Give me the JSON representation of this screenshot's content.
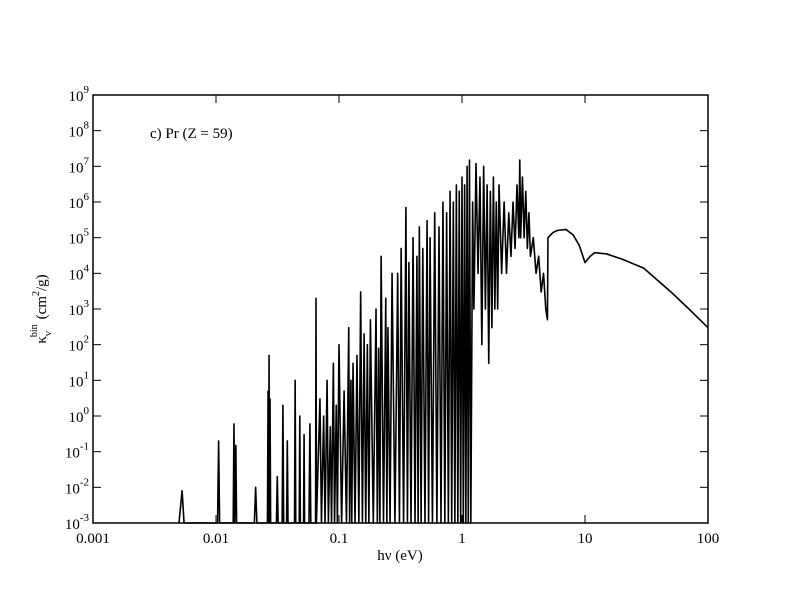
{
  "chart_data": {
    "type": "line",
    "annotation": "c) Pr (Z = 59)",
    "x_label": "hν (eV)",
    "y_label": {
      "symbol": "κ",
      "subscript": "ν",
      "superscript": "bin",
      "unit_start": "(cm",
      "unit_power": "2",
      "unit_end": "/g)"
    },
    "log_x": true,
    "log_y": true,
    "grid": false,
    "xlim": [
      0.001,
      100
    ],
    "xticks": [
      0.001,
      0.01,
      0.1,
      1,
      10,
      100
    ],
    "ylim": [
      0.001,
      1000000000
    ],
    "yticks": [
      {
        "value": 0.001,
        "label": "10",
        "exponent": "-3"
      },
      {
        "value": 0.01,
        "label": "10",
        "exponent": "-2"
      },
      {
        "value": 0.1,
        "label": "10",
        "exponent": "-1"
      },
      {
        "value": 1,
        "label": "10",
        "exponent": "0"
      },
      {
        "value": 10,
        "label": "10",
        "exponent": "1"
      },
      {
        "value": 100,
        "label": "10",
        "exponent": "2"
      },
      {
        "value": 1000,
        "label": "10",
        "exponent": "3"
      },
      {
        "value": 10000,
        "label": "10",
        "exponent": "4"
      },
      {
        "value": 100000,
        "label": "10",
        "exponent": "5"
      },
      {
        "value": 1000000,
        "label": "10",
        "exponent": "6"
      },
      {
        "value": 10000000,
        "label": "10",
        "exponent": "7"
      },
      {
        "value": 100000000,
        "label": "10",
        "exponent": "8"
      },
      {
        "value": 1000000000,
        "label": "10",
        "exponent": "9"
      }
    ],
    "series": [
      {
        "color": "#000000",
        "x": [
          0.005,
          0.0053,
          0.0055,
          0.0103,
          0.0105,
          0.0107,
          0.0138,
          0.014,
          0.0142,
          0.0145,
          0.0147,
          0.0205,
          0.021,
          0.0215,
          0.0262,
          0.0265,
          0.0268,
          0.027,
          0.0272,
          0.0275,
          0.0278,
          0.031,
          0.0315,
          0.032,
          0.0345,
          0.035,
          0.0355,
          0.0375,
          0.038,
          0.0385,
          0.0435,
          0.044,
          0.0445,
          0.0475,
          0.048,
          0.0485,
          0.0515,
          0.052,
          0.0525,
          0.057,
          0.058,
          0.059,
          0.0645,
          0.065,
          0.0655,
          0.07,
          0.072,
          0.075,
          0.077,
          0.08,
          0.082,
          0.085,
          0.087,
          0.09,
          0.092,
          0.095,
          0.097,
          0.1,
          0.105,
          0.11,
          0.115,
          0.12,
          0.122,
          0.125,
          0.127,
          0.13,
          0.135,
          0.14,
          0.145,
          0.15,
          0.155,
          0.16,
          0.165,
          0.17,
          0.175,
          0.18,
          0.19,
          0.2,
          0.205,
          0.21,
          0.215,
          0.22,
          0.23,
          0.24,
          0.245,
          0.25,
          0.26,
          0.27,
          0.285,
          0.3,
          0.31,
          0.32,
          0.335,
          0.35,
          0.36,
          0.37,
          0.385,
          0.4,
          0.415,
          0.43,
          0.44,
          0.45,
          0.465,
          0.48,
          0.5,
          0.52,
          0.535,
          0.55,
          0.575,
          0.6,
          0.625,
          0.65,
          0.675,
          0.7,
          0.725,
          0.75,
          0.775,
          0.8,
          0.825,
          0.85,
          0.875,
          0.9,
          0.925,
          0.95,
          0.975,
          1.0,
          1.025,
          1.05,
          1.075,
          1.1,
          1.125,
          1.15,
          1.18,
          1.22,
          1.25,
          1.3,
          1.35,
          1.4,
          1.45,
          1.5,
          1.55,
          1.6,
          1.65,
          1.7,
          1.75,
          1.8,
          1.85,
          1.9,
          1.95,
          2.0,
          2.1,
          2.2,
          2.3,
          2.4,
          2.5,
          2.6,
          2.7,
          2.8,
          2.9,
          2.95,
          3.0,
          3.1,
          3.2,
          3.3,
          3.4,
          3.5,
          3.6,
          3.8,
          4.0,
          4.2,
          4.4,
          4.6,
          4.8,
          4.95,
          5.0,
          5.5,
          6,
          7,
          8,
          9,
          10,
          11,
          12,
          15,
          20,
          30,
          50,
          70,
          100
        ],
        "values": [
          0.001,
          0.008,
          0.001,
          0.001,
          0.2,
          0.001,
          0.001,
          0.6,
          0.001,
          0.15,
          0.001,
          0.001,
          0.01,
          0.001,
          0.001,
          5,
          0.001,
          50,
          0.001,
          3,
          0.001,
          0.001,
          0.02,
          0.001,
          0.001,
          2,
          0.001,
          0.001,
          0.2,
          0.001,
          0.001,
          10,
          0.001,
          0.001,
          1,
          0.001,
          0.001,
          0.3,
          0.001,
          0.001,
          0.6,
          0.001,
          0.001,
          2000,
          0.001,
          3,
          0.001,
          1,
          0.001,
          10,
          0.001,
          0.5,
          0.001,
          30,
          0.001,
          2,
          0.001,
          100,
          0.001,
          5,
          0.001,
          300,
          0.001,
          10,
          0.001,
          30,
          0.001,
          50,
          0.001,
          3000,
          0.001,
          200,
          0.001,
          100,
          0.001,
          500,
          0.001,
          1000,
          0.001,
          80,
          0.001,
          30000,
          0.001,
          2000,
          0.001,
          300,
          0.001,
          10000,
          0.001,
          10000,
          0.001,
          50000,
          0.001,
          700000,
          0.001,
          20000,
          0.001,
          100000,
          0.001,
          30000,
          0.001,
          200000,
          0.001,
          50000,
          0.001,
          300000,
          0.001,
          100000,
          0.001,
          500000,
          0.001,
          200000,
          0.001,
          1000000,
          0.001,
          500000,
          0.001,
          2000000,
          0.001,
          1000000,
          0.001,
          3000000,
          0.001,
          2000000,
          0.001,
          5000000,
          0.001,
          3000000,
          0.001,
          10000000,
          0.001,
          15000000,
          0.001,
          1000000,
          1000,
          12000000,
          10000,
          5000000,
          100,
          10000000,
          1000,
          3000000,
          30,
          2000000,
          300,
          5000000,
          1000,
          1000000,
          1000,
          3000000,
          10000,
          1000000,
          10000,
          500000,
          30000,
          1000000,
          50000,
          3000000,
          100000,
          15000000,
          100000,
          5000000,
          100000,
          2000000,
          50000,
          500000,
          30000,
          100000,
          10000,
          30000,
          3000,
          10000,
          1000,
          500,
          100000,
          140000,
          160000,
          170000,
          120000,
          60000,
          20000,
          30000,
          38000,
          35000,
          25000,
          14000,
          3000,
          1000,
          300
        ]
      }
    ]
  }
}
